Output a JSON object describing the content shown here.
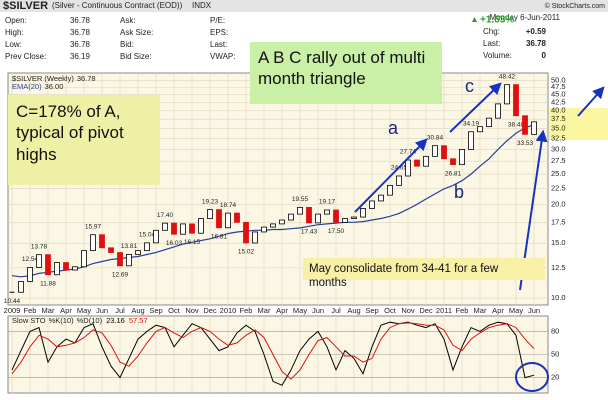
{
  "header": {
    "title": "$SILVER",
    "subtitle": "(Silver - Continuous Contract (EOD))",
    "exchange": "INDX",
    "copyright": "© StockCharts.com",
    "quote": [
      [
        {
          "label": "Open:",
          "value": "36.78"
        },
        {
          "label": "Ask:"
        },
        {
          "label": "P/E:"
        }
      ],
      [
        {
          "label": "High:",
          "value": "36.78"
        },
        {
          "label": "Ask Size:"
        },
        {
          "label": "EPS:"
        }
      ],
      [
        {
          "label": "Low:",
          "value": "36.78"
        },
        {
          "label": "Bid:"
        },
        {
          "label": "Last:"
        }
      ],
      [
        {
          "label": "Prev Close:",
          "value": "36.19"
        },
        {
          "label": "Bid Size:"
        },
        {
          "label": "VWAP:"
        }
      ]
    ],
    "date": "Monday  6-Jun-2011",
    "change_pct": "+1.63%",
    "stats": [
      {
        "label": "Chg:",
        "value": "+0.59"
      },
      {
        "label": "Last:",
        "value": "36.78"
      },
      {
        "label": "Volume:",
        "value": "0"
      }
    ]
  },
  "chart_data": [
    {
      "type": "candlestick",
      "categories": [
        "2009",
        null,
        "Feb",
        null,
        "Mar",
        null,
        "Apr",
        null,
        "May",
        null,
        "Jun",
        null,
        "Jul",
        null,
        "Aug",
        null,
        "Sep",
        null,
        "Oct",
        null,
        "Nov",
        null,
        "Dec",
        null,
        "2010",
        null,
        "Feb",
        null,
        "Mar",
        null,
        "Apr",
        null,
        "May",
        null,
        "Jun",
        null,
        "Jul",
        null,
        "Aug",
        null,
        "Sep",
        null,
        "Oct",
        null,
        "Nov",
        null,
        "Dec",
        null,
        "2011",
        null,
        "Feb",
        null,
        "Mar",
        null,
        "Apr",
        null,
        "May",
        null,
        "Jun"
      ],
      "series": [
        {
          "name": "$SILVER (Weekly)",
          "up_color": "#000000",
          "down_color": "#e01010",
          "values": [
            10.44,
            11.3,
            12.54,
            13.78,
            11.88,
            13.0,
            12.3,
            12.6,
            14.2,
            15.97,
            14.5,
            14.0,
            12.69,
            13.81,
            14.2,
            15.04,
            16.5,
            17.4,
            16.03,
            17.3,
            16.15,
            18.0,
            19.23,
            16.81,
            18.74,
            17.5,
            15.02,
            16.3,
            16.9,
            17.3,
            17.8,
            18.6,
            19.55,
            17.43,
            18.6,
            19.17,
            17.5,
            18.0,
            18.2,
            19.4,
            20.5,
            21.4,
            23.0,
            24.65,
            27.74,
            26.5,
            28.5,
            30.84,
            28.0,
            26.81,
            30.0,
            34.19,
            35.5,
            37.8,
            42.0,
            48.42,
            38.48,
            33.53,
            36.78
          ],
          "value_labels": [
            "10.44",
            null,
            "12.54",
            "13.78",
            "11.88",
            null,
            null,
            null,
            null,
            "15.97",
            null,
            null,
            "12.69",
            "13.81",
            null,
            "15.04",
            null,
            "17.40",
            "16.03",
            null,
            "16.15",
            null,
            "19.23",
            "16.81",
            "18.74",
            null,
            "15.02",
            null,
            null,
            null,
            null,
            null,
            "19.55",
            "17.43",
            null,
            "19.17",
            "17.50",
            null,
            null,
            null,
            null,
            null,
            null,
            "24.65",
            "27.74",
            null,
            null,
            "30.84",
            null,
            "26.81",
            null,
            "34.19",
            null,
            null,
            null,
            "48.42",
            "38.48",
            "33.53",
            null
          ]
        },
        {
          "name": "EMA(20)",
          "color": "#2a3f9a",
          "values": [
            11.8,
            11.7,
            11.8,
            12.0,
            12.1,
            12.2,
            12.3,
            12.4,
            12.6,
            12.9,
            13.1,
            13.3,
            13.4,
            13.5,
            13.6,
            13.8,
            14.0,
            14.3,
            14.6,
            14.9,
            15.1,
            15.3,
            15.5,
            15.8,
            16.1,
            16.3,
            16.4,
            16.5,
            16.5,
            16.6,
            16.6,
            16.7,
            16.8,
            17.0,
            17.2,
            17.3,
            17.4,
            17.5,
            17.5,
            17.6,
            17.8,
            18.0,
            18.3,
            18.7,
            19.3,
            20.0,
            20.8,
            21.6,
            22.4,
            23.0,
            23.8,
            25.0,
            26.5,
            28.0,
            30.0,
            32.0,
            33.8,
            35.2,
            36.0
          ],
          "value_labels": [
            null,
            null,
            null,
            null,
            null,
            null,
            null,
            null,
            null,
            null,
            null,
            null,
            null,
            null,
            null,
            null,
            null,
            null,
            null,
            null,
            null,
            null,
            null,
            null,
            null,
            null,
            null,
            null,
            null,
            null,
            null,
            null,
            null,
            null,
            null,
            null,
            null,
            null,
            null,
            null,
            null,
            null,
            null,
            null,
            null,
            null,
            null,
            null,
            null,
            null,
            null,
            null,
            null,
            null,
            null,
            null,
            null,
            null,
            "36.00"
          ]
        }
      ],
      "log_scale": true,
      "ylim": [
        9.5,
        52
      ],
      "yticks": [
        {
          "value": 10,
          "label": "10.0"
        },
        {
          "value": 12.5,
          "label": "12.5"
        },
        {
          "value": 15,
          "label": "15.0"
        },
        {
          "value": 17.5,
          "label": "17.5"
        },
        {
          "value": 20,
          "label": "20.0"
        },
        {
          "value": 22.5,
          "label": "22.5"
        },
        {
          "value": 25,
          "label": "25.0"
        },
        {
          "value": 27.5,
          "label": "27.5"
        },
        {
          "value": 30,
          "label": "30.0"
        },
        {
          "value": 32.5,
          "label": "32.5"
        },
        {
          "value": 35,
          "label": "35.0"
        },
        {
          "value": 37.5,
          "label": "37.5"
        },
        {
          "value": 40,
          "label": "40.0"
        },
        {
          "value": 42.5,
          "label": "42.5"
        },
        {
          "value": 45,
          "label": "45.0"
        },
        {
          "value": 47.5,
          "label": "47.5"
        },
        {
          "value": 50,
          "label": "50.0"
        }
      ],
      "grid": true,
      "annotations": [
        "A B C rally out of multi month triangle",
        "C=178% of A, typical of pivot highs",
        "May consolidate from 34-41 for a few months",
        "a",
        "b",
        "c"
      ]
    },
    {
      "type": "line",
      "title": "Slow STO",
      "series": [
        {
          "name": "%K(10)",
          "color": "#000000",
          "values": [
            30,
            55,
            80,
            85,
            40,
            60,
            70,
            65,
            85,
            90,
            60,
            35,
            20,
            45,
            70,
            80,
            88,
            85,
            60,
            75,
            90,
            85,
            70,
            55,
            60,
            78,
            88,
            80,
            50,
            15,
            10,
            30,
            55,
            70,
            80,
            60,
            30,
            55,
            45,
            25,
            60,
            88,
            92,
            90,
            92,
            88,
            85,
            90,
            70,
            30,
            60,
            85,
            80,
            88,
            92,
            90,
            75,
            20,
            23.16
          ]
        },
        {
          "name": "%D(10)",
          "color": "#e01010",
          "values": [
            25,
            40,
            60,
            75,
            70,
            60,
            62,
            65,
            72,
            82,
            78,
            62,
            40,
            35,
            48,
            65,
            80,
            85,
            78,
            72,
            80,
            85,
            80,
            70,
            62,
            65,
            75,
            82,
            72,
            50,
            28,
            18,
            30,
            50,
            68,
            72,
            60,
            48,
            48,
            40,
            45,
            70,
            85,
            90,
            91,
            90,
            88,
            88,
            82,
            62,
            55,
            70,
            78,
            85,
            88,
            90,
            85,
            70,
            57.57
          ]
        }
      ],
      "ylim": [
        0,
        100
      ],
      "yticks": [
        20,
        50,
        80
      ],
      "grid": true
    }
  ]
}
